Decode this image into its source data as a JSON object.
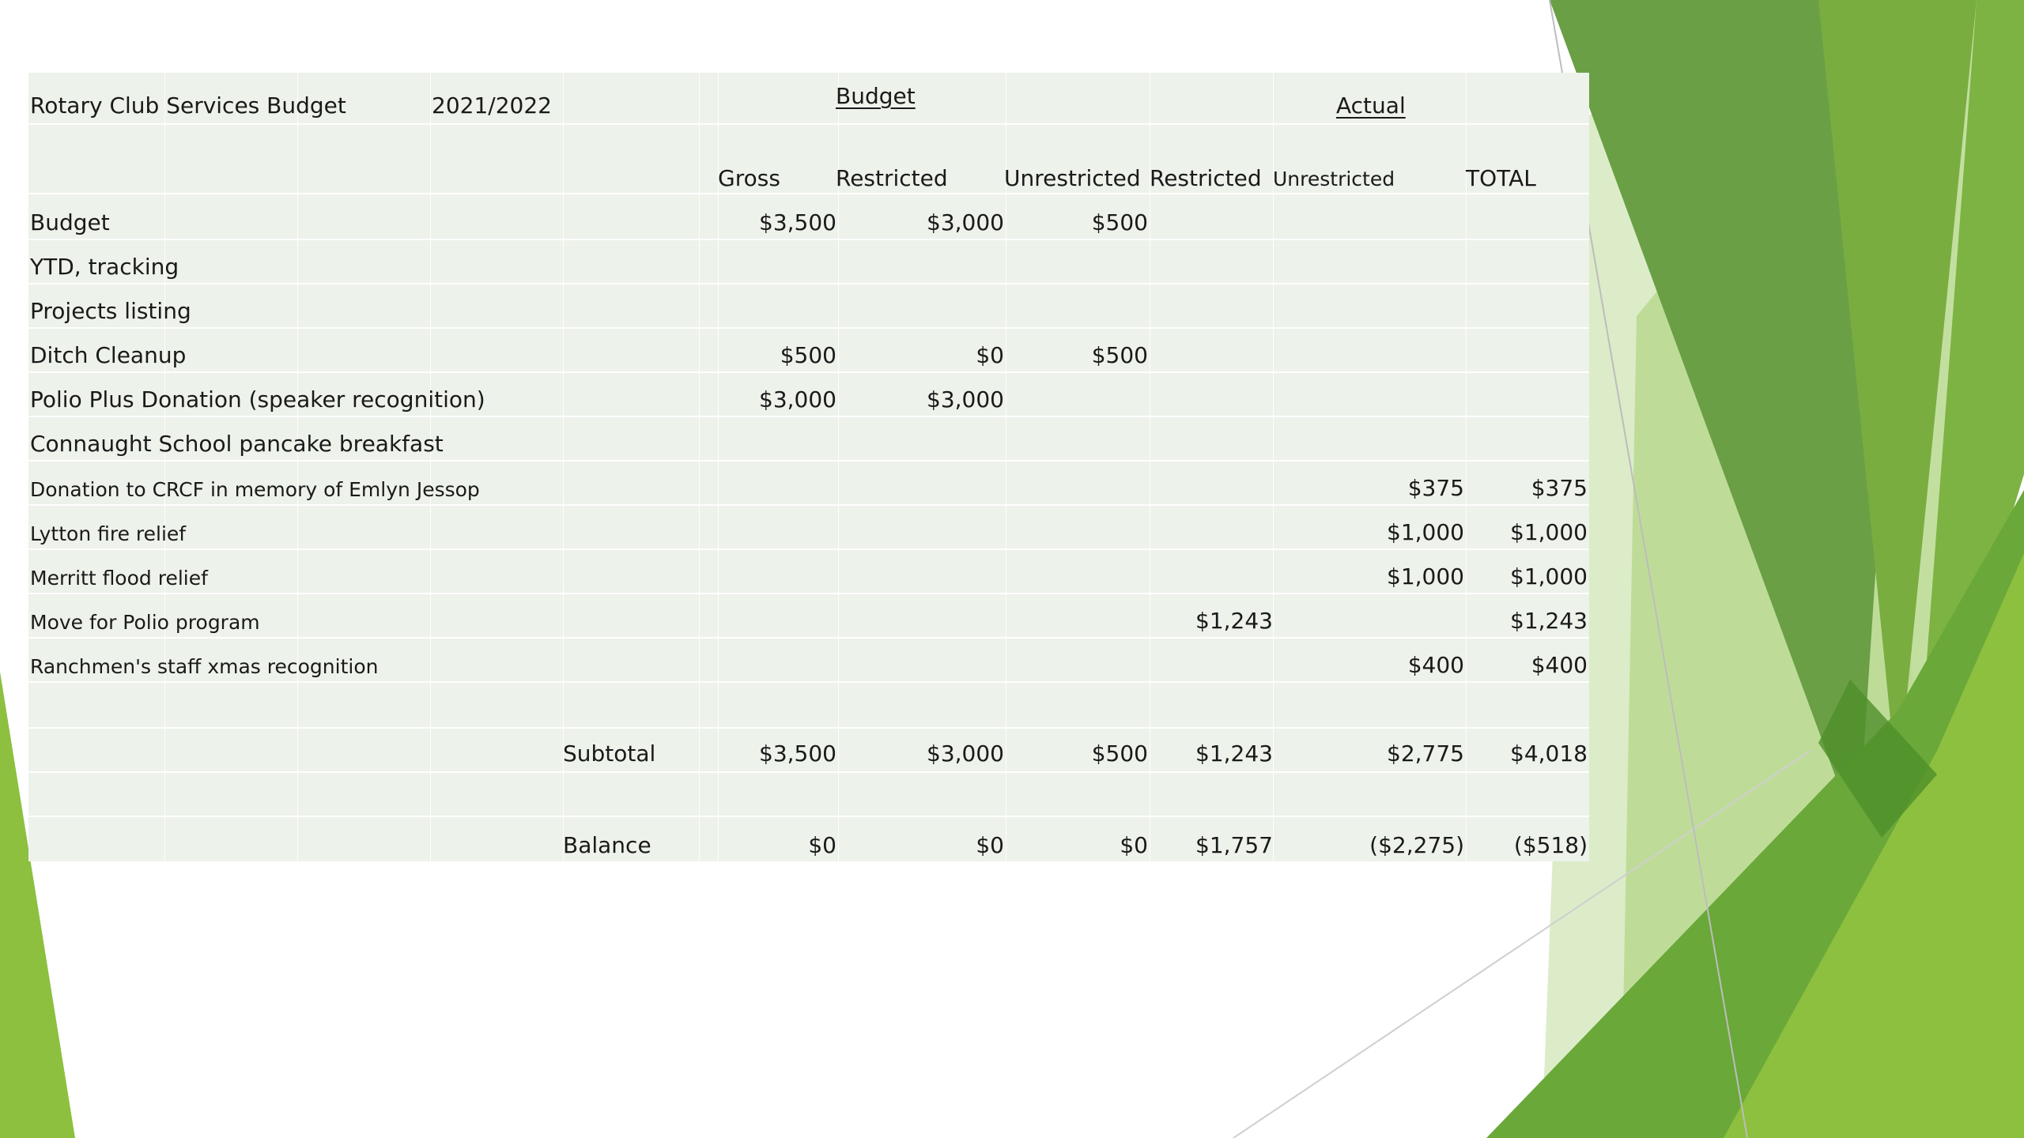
{
  "slide": {
    "colors": {
      "background": "#ffffff",
      "table_fill": "#edf2ea",
      "green_dark": "#5e9a3a",
      "green_mid": "#7cb342",
      "green_light": "#b9d98f",
      "green_pale": "#dcecc8"
    }
  },
  "budget_table": {
    "title": "Rotary Club Services Budget",
    "year": "2021/2022",
    "group_budget": "Budget",
    "group_actual": "Actual",
    "columns": {
      "gross": "Gross",
      "budget_restricted": "Restricted",
      "budget_unrestricted": "Unrestricted",
      "actual_restricted": "Restricted",
      "actual_unrestricted": "Unrestricted",
      "total": "TOTAL"
    },
    "rows": [
      {
        "label": "Budget",
        "gross": "$3,500",
        "b_restricted": "$3,000",
        "b_unrestricted": "$500",
        "a_restricted": "",
        "a_unrestricted": "",
        "total": ""
      },
      {
        "label": "YTD, tracking",
        "gross": "",
        "b_restricted": "",
        "b_unrestricted": "",
        "a_restricted": "",
        "a_unrestricted": "",
        "total": ""
      },
      {
        "label": "Projects listing",
        "gross": "",
        "b_restricted": "",
        "b_unrestricted": "",
        "a_restricted": "",
        "a_unrestricted": "",
        "total": ""
      },
      {
        "label": "Ditch Cleanup",
        "gross": "$500",
        "b_restricted": "$0",
        "b_unrestricted": "$500",
        "a_restricted": "",
        "a_unrestricted": "",
        "total": ""
      },
      {
        "label": "Polio Plus Donation (speaker recognition)",
        "gross": "$3,000",
        "b_restricted": "$3,000",
        "b_unrestricted": "",
        "a_restricted": "",
        "a_unrestricted": "",
        "total": ""
      },
      {
        "label": "Connaught School pancake breakfast",
        "gross": "",
        "b_restricted": "",
        "b_unrestricted": "",
        "a_restricted": "",
        "a_unrestricted": "",
        "total": ""
      },
      {
        "label": "Donation to CRCF in memory of Emlyn Jessop",
        "gross": "",
        "b_restricted": "",
        "b_unrestricted": "",
        "a_restricted": "",
        "a_unrestricted": "$375",
        "total": "$375"
      },
      {
        "label": "Lytton fire relief",
        "gross": "",
        "b_restricted": "",
        "b_unrestricted": "",
        "a_restricted": "",
        "a_unrestricted": "$1,000",
        "total": "$1,000"
      },
      {
        "label": "Merritt flood relief",
        "gross": "",
        "b_restricted": "",
        "b_unrestricted": "",
        "a_restricted": "",
        "a_unrestricted": "$1,000",
        "total": "$1,000"
      },
      {
        "label": "Move for Polio program",
        "gross": "",
        "b_restricted": "",
        "b_unrestricted": "",
        "a_restricted": "$1,243",
        "a_unrestricted": "",
        "total": "$1,243"
      },
      {
        "label": "Ranchmen's staff xmas recognition",
        "gross": "",
        "b_restricted": "",
        "b_unrestricted": "",
        "a_restricted": "",
        "a_unrestricted": "$400",
        "total": "$400"
      }
    ],
    "subtotal": {
      "label": "Subtotal",
      "gross": "$3,500",
      "b_restricted": "$3,000",
      "b_unrestricted": "$500",
      "a_restricted": "$1,243",
      "a_unrestricted": "$2,775",
      "total": "$4,018"
    },
    "balance": {
      "label": "Balance",
      "gross": "$0",
      "b_restricted": "$0",
      "b_unrestricted": "$0",
      "a_restricted": "$1,757",
      "a_unrestricted": "($2,275)",
      "total": "($518)"
    }
  }
}
